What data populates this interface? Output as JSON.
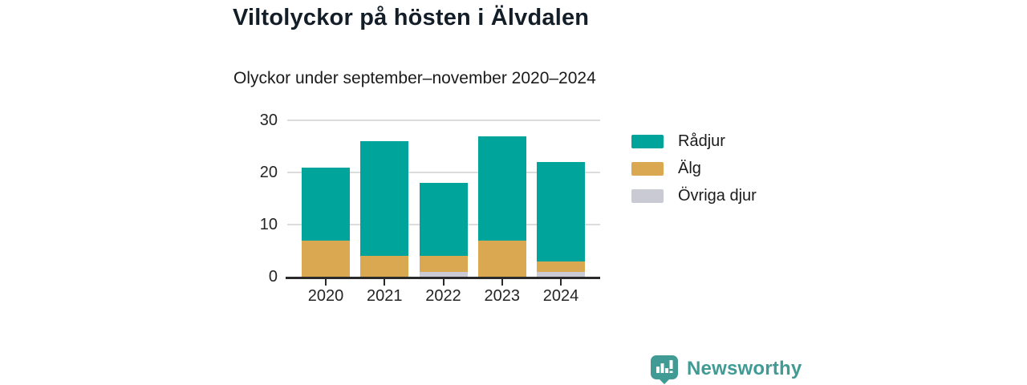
{
  "header": {
    "title": "Viltolyckor på hösten i Älvdalen",
    "subtitle": "Olyckor under september–november 2020–2024"
  },
  "chart_data": {
    "type": "bar",
    "stacked": true,
    "title": "Viltolyckor på hösten i Älvdalen",
    "subtitle": "Olyckor under september–november 2020–2024",
    "categories": [
      "2020",
      "2021",
      "2022",
      "2023",
      "2024"
    ],
    "series": [
      {
        "name": "Rådjur",
        "color": "#00a49a",
        "values": [
          14,
          22,
          14,
          20,
          19
        ]
      },
      {
        "name": "Älg",
        "color": "#d9a850",
        "values": [
          7,
          4,
          3,
          7,
          2
        ]
      },
      {
        "name": "Övriga djur",
        "color": "#c9cad3",
        "values": [
          0,
          0,
          1,
          0,
          1
        ]
      }
    ],
    "stack_order_bottom_to_top": [
      "Övriga djur",
      "Älg",
      "Rådjur"
    ],
    "totals": [
      21,
      26,
      18,
      27,
      22
    ],
    "xlabel": "",
    "ylabel": "",
    "ylim": [
      0,
      30
    ],
    "yticks": [
      0,
      10,
      20,
      30
    ],
    "grid": true,
    "legend_position": "right"
  },
  "branding": {
    "name": "Newsworthy",
    "logo_icon": "newsworthy-speech-bubble-bar-chart-icon",
    "color": "#3f9b94"
  },
  "colors": {
    "background": "#ffffff",
    "axis": "#2a2a2a",
    "gridline": "#dcdcdc",
    "text": "#1c1c1c",
    "title_text": "#141e28"
  }
}
